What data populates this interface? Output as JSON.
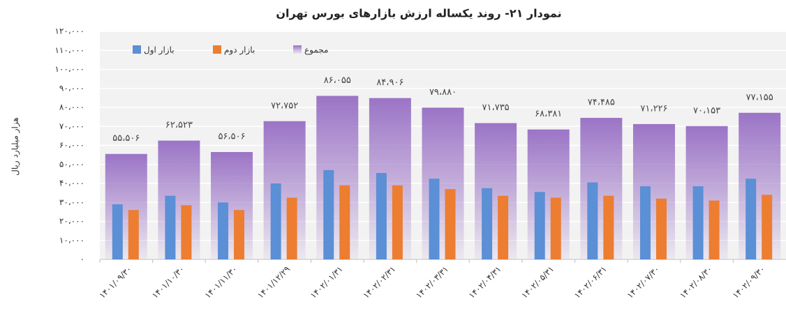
{
  "chart_data": {
    "type": "bar",
    "title": "نمودار ۲۱- روند یکساله ارزش بازارهای بورس تهران",
    "y_label": "هزار میلیارد ریال",
    "categories": [
      "۱۴۰۱/۰۹/۳۰",
      "۱۴۰۱/۱۰/۳۰",
      "۱۴۰۱/۱۱/۳۰",
      "۱۴۰۱/۱۲/۲۹",
      "۱۴۰۲/۰۱/۳۱",
      "۱۴۰۲/۰۲/۳۱",
      "۱۴۰۲/۰۳/۳۱",
      "۱۴۰۲/۰۴/۳۱",
      "۱۴۰۲/۰۵/۳۱",
      "۱۴۰۲/۰۶/۳۱",
      "۱۴۰۲/۰۷/۳۰",
      "۱۴۰۲/۰۸/۳۰",
      "۱۴۰۲/۰۹/۳۰"
    ],
    "series": [
      {
        "name": "مجموع",
        "color": "#9b74c6",
        "values": [
          55506,
          62523,
          56506,
          72752,
          86055,
          84906,
          79880,
          71735,
          68381,
          74485,
          71226,
          70153,
          77155
        ],
        "value_labels": [
          "۵۵،۵۰۶",
          "۶۲،۵۲۳",
          "۵۶،۵۰۶",
          "۷۲،۷۵۲",
          "۸۶،۰۵۵",
          "۸۴،۹۰۶",
          "۷۹،۸۸۰",
          "۷۱،۷۳۵",
          "۶۸،۳۸۱",
          "۷۴،۴۸۵",
          "۷۱،۲۲۶",
          "۷۰،۱۵۳",
          "۷۷،۱۵۵"
        ]
      },
      {
        "name": "بازار اول",
        "color": "#5b8fd6",
        "values": [
          29000,
          33500,
          30000,
          40000,
          47000,
          45500,
          42500,
          37500,
          35500,
          40500,
          38500,
          38500,
          42500
        ]
      },
      {
        "name": "بازار دوم",
        "color": "#ed7d31",
        "values": [
          26000,
          28500,
          26000,
          32500,
          39000,
          39000,
          37000,
          33500,
          32500,
          33500,
          32000,
          31000,
          34000
        ]
      }
    ],
    "ylim": [
      0,
      120000
    ],
    "yticks": [
      {
        "value": 0,
        "label": "٠"
      },
      {
        "value": 10000,
        "label": "۱۰،۰۰۰"
      },
      {
        "value": 20000,
        "label": "۲۰،۰۰۰"
      },
      {
        "value": 30000,
        "label": "۳۰،۰۰۰"
      },
      {
        "value": 40000,
        "label": "۴۰،۰۰۰"
      },
      {
        "value": 50000,
        "label": "۵۰،۰۰۰"
      },
      {
        "value": 60000,
        "label": "۶۰،۰۰۰"
      },
      {
        "value": 70000,
        "label": "۷۰،۰۰۰"
      },
      {
        "value": 80000,
        "label": "۸۰،۰۰۰"
      },
      {
        "value": 90000,
        "label": "۹۰،۰۰۰"
      },
      {
        "value": 100000,
        "label": "۱۰۰،۰۰۰"
      },
      {
        "value": 110000,
        "label": "۱۱۰،۰۰۰"
      },
      {
        "value": 120000,
        "label": "۱۲۰،۰۰۰"
      }
    ],
    "grid": true,
    "legend": "top-left"
  }
}
